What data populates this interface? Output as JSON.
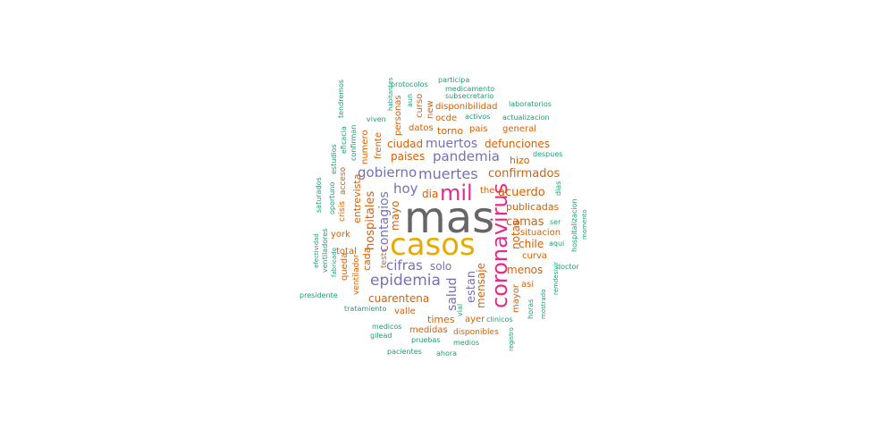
{
  "palette": {
    "gray": "#666666",
    "gold": "#E6AB02",
    "magenta": "#E7298A",
    "purple": "#7570B3",
    "orange": "#D95F02",
    "teal": "#1B9E77"
  },
  "words": [
    {
      "text": "mas",
      "weight": 48,
      "color": "gray",
      "vertical": false
    },
    {
      "text": "casos",
      "weight": 34,
      "color": "gold",
      "vertical": false
    },
    {
      "text": "coronavirus",
      "weight": 24,
      "color": "magenta",
      "vertical": true
    },
    {
      "text": "mil",
      "weight": 24,
      "color": "magenta",
      "vertical": false
    },
    {
      "text": "epidemia",
      "weight": 17,
      "color": "purple",
      "vertical": false
    },
    {
      "text": "muertes",
      "weight": 16,
      "color": "purple",
      "vertical": false
    },
    {
      "text": "gobierno",
      "weight": 15,
      "color": "purple",
      "vertical": false
    },
    {
      "text": "pandemia",
      "weight": 15,
      "color": "purple",
      "vertical": false
    },
    {
      "text": "hoy",
      "weight": 15,
      "color": "purple",
      "vertical": false
    },
    {
      "text": "cifras",
      "weight": 15,
      "color": "purple",
      "vertical": false
    },
    {
      "text": "muertos",
      "weight": 14,
      "color": "purple",
      "vertical": false
    },
    {
      "text": "contagios",
      "weight": 14,
      "color": "purple",
      "vertical": true
    },
    {
      "text": "salud",
      "weight": 14,
      "color": "purple",
      "vertical": true
    },
    {
      "text": "estan",
      "weight": 13,
      "color": "purple",
      "vertical": true
    },
    {
      "text": "confirmados",
      "weight": 13,
      "color": "orange",
      "vertical": false
    },
    {
      "text": "acuerdo",
      "weight": 13,
      "color": "orange",
      "vertical": false
    },
    {
      "text": "camas",
      "weight": 13,
      "color": "orange",
      "vertical": false
    },
    {
      "text": "hospitales",
      "weight": 13,
      "color": "orange",
      "vertical": true
    },
    {
      "text": "cuarentena",
      "weight": 12,
      "color": "orange",
      "vertical": false
    },
    {
      "text": "mensaje",
      "weight": 12,
      "color": "orange",
      "vertical": true
    },
    {
      "text": "solo",
      "weight": 12,
      "color": "purple",
      "vertical": false
    },
    {
      "text": "paises",
      "weight": 12,
      "color": "orange",
      "vertical": false
    },
    {
      "text": "ciudad",
      "weight": 12,
      "color": "orange",
      "vertical": false
    },
    {
      "text": "defunciones",
      "weight": 12,
      "color": "orange",
      "vertical": false
    },
    {
      "text": "chile",
      "weight": 12,
      "color": "orange",
      "vertical": false
    },
    {
      "text": "menos",
      "weight": 12,
      "color": "orange",
      "vertical": false
    },
    {
      "text": "notas",
      "weight": 12,
      "color": "orange",
      "vertical": true
    },
    {
      "text": "publicadas",
      "weight": 11,
      "color": "orange",
      "vertical": false
    },
    {
      "text": "mayo",
      "weight": 12,
      "color": "orange",
      "vertical": true
    },
    {
      "text": "dia",
      "weight": 12,
      "color": "orange",
      "vertical": false
    },
    {
      "text": "entrevista",
      "weight": 11,
      "color": "orange",
      "vertical": true
    },
    {
      "text": "cada",
      "weight": 11,
      "color": "orange",
      "vertical": true
    },
    {
      "text": "times",
      "weight": 11,
      "color": "orange",
      "vertical": false
    },
    {
      "text": "hizo",
      "weight": 11,
      "color": "orange",
      "vertical": false
    },
    {
      "text": "torno",
      "weight": 11,
      "color": "orange",
      "vertical": false
    },
    {
      "text": "situacion",
      "weight": 10,
      "color": "orange",
      "vertical": false
    },
    {
      "text": "medidas",
      "weight": 10,
      "color": "orange",
      "vertical": false
    },
    {
      "text": "frente",
      "weight": 10,
      "color": "orange",
      "vertical": true
    },
    {
      "text": "numero",
      "weight": 10,
      "color": "orange",
      "vertical": true
    },
    {
      "text": "york",
      "weight": 10,
      "color": "orange",
      "vertical": false
    },
    {
      "text": "total",
      "weight": 10,
      "color": "orange",
      "vertical": false
    },
    {
      "text": "valle",
      "weight": 10,
      "color": "orange",
      "vertical": false
    },
    {
      "text": "datos",
      "weight": 10,
      "color": "orange",
      "vertical": false
    },
    {
      "text": "ocde",
      "weight": 10,
      "color": "orange",
      "vertical": false
    },
    {
      "text": "pais",
      "weight": 10,
      "color": "orange",
      "vertical": false
    },
    {
      "text": "general",
      "weight": 10,
      "color": "orange",
      "vertical": false
    },
    {
      "text": "disponibilidad",
      "weight": 10,
      "color": "orange",
      "vertical": false
    },
    {
      "text": "personas",
      "weight": 10,
      "color": "orange",
      "vertical": true
    },
    {
      "text": "curso",
      "weight": 10,
      "color": "orange",
      "vertical": true
    },
    {
      "text": "new",
      "weight": 10,
      "color": "orange",
      "vertical": true
    },
    {
      "text": "asi",
      "weight": 10,
      "color": "orange",
      "vertical": false
    },
    {
      "text": "curva",
      "weight": 10,
      "color": "orange",
      "vertical": false
    },
    {
      "text": "mayor",
      "weight": 10,
      "color": "orange",
      "vertical": true
    },
    {
      "text": "queda",
      "weight": 10,
      "color": "orange",
      "vertical": true
    },
    {
      "text": "ayer",
      "weight": 10,
      "color": "orange",
      "vertical": false
    },
    {
      "text": "the",
      "weight": 10,
      "color": "orange",
      "vertical": false
    },
    {
      "text": "tests",
      "weight": 9,
      "color": "orange",
      "vertical": true
    },
    {
      "text": "ventilador",
      "weight": 9,
      "color": "orange",
      "vertical": true
    },
    {
      "text": "acceso",
      "weight": 9,
      "color": "orange",
      "vertical": true
    },
    {
      "text": "crisis",
      "weight": 9,
      "color": "orange",
      "vertical": true
    },
    {
      "text": "disponibles",
      "weight": 9,
      "color": "orange",
      "vertical": false
    },
    {
      "text": "confirman",
      "weight": 8,
      "color": "teal",
      "vertical": true
    },
    {
      "text": "estudios",
      "weight": 8,
      "color": "teal",
      "vertical": true
    },
    {
      "text": "eficacia",
      "weight": 8,
      "color": "teal",
      "vertical": true
    },
    {
      "text": "tendremos",
      "weight": 8,
      "color": "teal",
      "vertical": true
    },
    {
      "text": "oportuno",
      "weight": 8,
      "color": "teal",
      "vertical": true
    },
    {
      "text": "saturados",
      "weight": 8,
      "color": "teal",
      "vertical": true
    },
    {
      "text": "ventiladores",
      "weight": 8,
      "color": "teal",
      "vertical": true
    },
    {
      "text": "efectividad",
      "weight": 7,
      "color": "teal",
      "vertical": true
    },
    {
      "text": "fabricado",
      "weight": 7,
      "color": "teal",
      "vertical": true
    },
    {
      "text": "presidente",
      "weight": 8,
      "color": "teal",
      "vertical": false
    },
    {
      "text": "tratamiento",
      "weight": 8,
      "color": "teal",
      "vertical": false
    },
    {
      "text": "medicos",
      "weight": 8,
      "color": "teal",
      "vertical": false
    },
    {
      "text": "gilead",
      "weight": 8,
      "color": "teal",
      "vertical": false
    },
    {
      "text": "pruebas",
      "weight": 8,
      "color": "teal",
      "vertical": false
    },
    {
      "text": "medios",
      "weight": 8,
      "color": "teal",
      "vertical": false
    },
    {
      "text": "pacientes",
      "weight": 8,
      "color": "teal",
      "vertical": false
    },
    {
      "text": "ahora",
      "weight": 8,
      "color": "teal",
      "vertical": false
    },
    {
      "text": "registro",
      "weight": 7,
      "color": "teal",
      "vertical": true
    },
    {
      "text": "clinicos",
      "weight": 8,
      "color": "teal",
      "vertical": false
    },
    {
      "text": "vial",
      "weight": 8,
      "color": "teal",
      "vertical": true
    },
    {
      "text": "horas",
      "weight": 8,
      "color": "teal",
      "vertical": true
    },
    {
      "text": "mostrado",
      "weight": 7,
      "color": "teal",
      "vertical": true
    },
    {
      "text": "remdesivir",
      "weight": 7,
      "color": "teal",
      "vertical": true
    },
    {
      "text": "doctor",
      "weight": 8,
      "color": "teal",
      "vertical": false
    },
    {
      "text": "aqui",
      "weight": 8,
      "color": "teal",
      "vertical": false
    },
    {
      "text": "ser",
      "weight": 8,
      "color": "teal",
      "vertical": false
    },
    {
      "text": "hospitalizacion",
      "weight": 8,
      "color": "teal",
      "vertical": true
    },
    {
      "text": "momento",
      "weight": 7,
      "color": "teal",
      "vertical": true
    },
    {
      "text": "dias",
      "weight": 8,
      "color": "teal",
      "vertical": true
    },
    {
      "text": "despues",
      "weight": 8,
      "color": "teal",
      "vertical": false
    },
    {
      "text": "actualizacion",
      "weight": 8,
      "color": "teal",
      "vertical": false
    },
    {
      "text": "laboratorios",
      "weight": 8,
      "color": "teal",
      "vertical": false
    },
    {
      "text": "activos",
      "weight": 8,
      "color": "teal",
      "vertical": false
    },
    {
      "text": "subsecretario",
      "weight": 8,
      "color": "teal",
      "vertical": false
    },
    {
      "text": "medicamento",
      "weight": 8,
      "color": "teal",
      "vertical": false
    },
    {
      "text": "participa",
      "weight": 8,
      "color": "teal",
      "vertical": false
    },
    {
      "text": "protocolos",
      "weight": 8,
      "color": "teal",
      "vertical": false
    },
    {
      "text": "habitantes",
      "weight": 7,
      "color": "teal",
      "vertical": true
    },
    {
      "text": "aun",
      "weight": 8,
      "color": "teal",
      "vertical": true
    },
    {
      "text": "viven",
      "weight": 8,
      "color": "teal",
      "vertical": false
    }
  ]
}
